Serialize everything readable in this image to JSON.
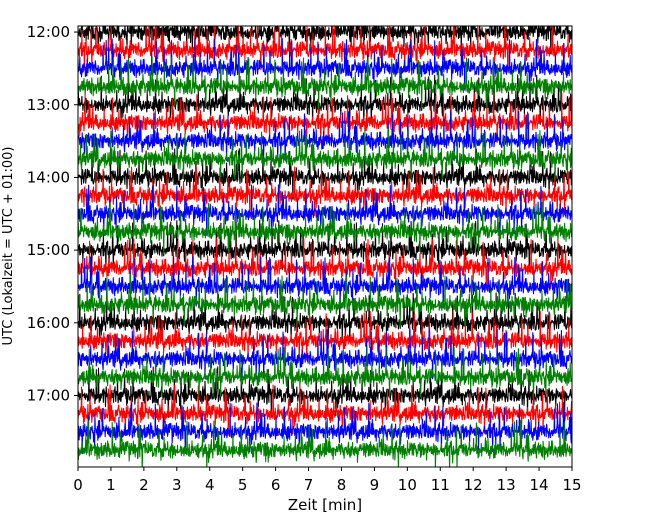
{
  "chart_data": {
    "type": "line",
    "title": "",
    "xlabel": "Zeit  [min]",
    "ylabel": "UTC (Lokalzeit = UTC + 01:00)",
    "xlim": [
      0,
      15
    ],
    "x_ticks": [
      0,
      1,
      2,
      3,
      4,
      5,
      6,
      7,
      8,
      9,
      10,
      11,
      12,
      13,
      14,
      15
    ],
    "x_tick_labels": [
      "0",
      "1",
      "2",
      "3",
      "4",
      "5",
      "6",
      "7",
      "8",
      "9",
      "10",
      "11",
      "12",
      "13",
      "14",
      "15"
    ],
    "ylim_minutes_utc": [
      715,
      1079
    ],
    "y_ticks_minutes_utc": [
      720,
      780,
      840,
      900,
      960,
      1020
    ],
    "y_tick_labels": [
      "12:00",
      "13:00",
      "14:00",
      "15:00",
      "16:00",
      "17:00"
    ],
    "trace_interval_min": 15,
    "trace_start_times": [
      "12:00",
      "12:15",
      "12:30",
      "12:45",
      "13:00",
      "13:15",
      "13:30",
      "13:45",
      "14:00",
      "14:15",
      "14:30",
      "14:45",
      "15:00",
      "15:15",
      "15:30",
      "15:45",
      "16:00",
      "16:15",
      "16:30",
      "16:45",
      "17:00",
      "17:15",
      "17:30",
      "17:45"
    ],
    "series": [
      {
        "color": "#000000",
        "start_times": [
          "12:00",
          "13:00",
          "14:00",
          "15:00",
          "16:00",
          "17:00"
        ]
      },
      {
        "color": "#ff0000",
        "start_times": [
          "12:15",
          "13:15",
          "14:15",
          "15:15",
          "16:15",
          "17:15"
        ]
      },
      {
        "color": "#0000ff",
        "start_times": [
          "12:30",
          "13:30",
          "14:30",
          "15:30",
          "16:30",
          "17:30"
        ]
      },
      {
        "color": "#008000",
        "start_times": [
          "12:45",
          "13:45",
          "14:45",
          "15:45",
          "16:45",
          "17:45"
        ]
      }
    ],
    "grid": false,
    "legend": "none"
  }
}
